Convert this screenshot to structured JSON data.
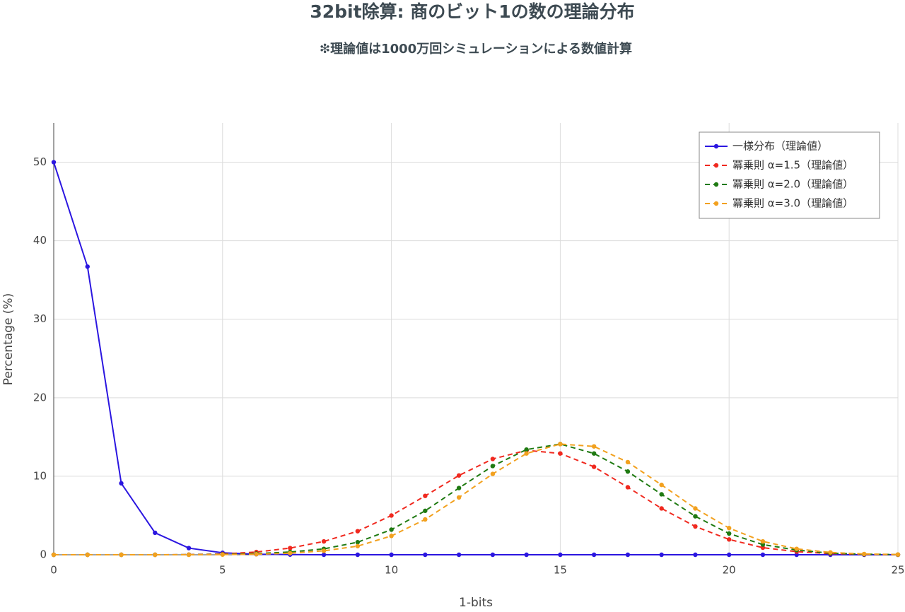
{
  "chart_data": {
    "type": "line",
    "title": "32bit除算: 商のビット1の数の理論分布",
    "subtitle": "❇理論値は1000万回シミュレーションによる数値計算",
    "x_label": "1-bits",
    "y_label": "Percentage (%)",
    "x": [
      0,
      1,
      2,
      3,
      4,
      5,
      6,
      7,
      8,
      9,
      10,
      11,
      12,
      13,
      14,
      15,
      16,
      17,
      18,
      19,
      20,
      21,
      22,
      23,
      24,
      25
    ],
    "xlim": [
      0,
      25
    ],
    "xticks": [
      0,
      5,
      10,
      15,
      20,
      25
    ],
    "ylim": [
      0,
      55
    ],
    "yticks": [
      0,
      10,
      20,
      30,
      40,
      50
    ],
    "grid": true,
    "legend": "upper-right",
    "series": [
      {
        "name": "一様分布（理論値）",
        "color": "#2b16e0",
        "line_style": "solid",
        "values": [
          50,
          36.7,
          9.1,
          2.8,
          0.85,
          0.25,
          0.07,
          0.02,
          0,
          0,
          0,
          0,
          0,
          0,
          0,
          0,
          0,
          0,
          0,
          0,
          0,
          0,
          0,
          0,
          0,
          0
        ]
      },
      {
        "name": "冪乗則 α=1.5（理論値）",
        "color": "#f0291f",
        "line_style": "dash",
        "values": [
          0,
          0,
          0,
          0,
          0.02,
          0.1,
          0.35,
          0.85,
          1.7,
          3.0,
          5.0,
          7.5,
          10.1,
          12.2,
          13.3,
          12.9,
          11.2,
          8.6,
          5.9,
          3.6,
          1.95,
          0.9,
          0.4,
          0.15,
          0.05,
          0.01
        ]
      },
      {
        "name": "冪乗則 α=2.0（理論値）",
        "color": "#1f7a12",
        "line_style": "dash",
        "values": [
          0,
          0,
          0,
          0,
          0.01,
          0.05,
          0.15,
          0.35,
          0.75,
          1.6,
          3.2,
          5.6,
          8.5,
          11.3,
          13.4,
          14.1,
          12.9,
          10.6,
          7.7,
          4.9,
          2.7,
          1.3,
          0.6,
          0.2,
          0.07,
          0.02
        ]
      },
      {
        "name": "冪乗則 α=3.0（理論値）",
        "color": "#f2a11f",
        "line_style": "dash",
        "values": [
          0,
          0,
          0,
          0,
          0,
          0.02,
          0.07,
          0.2,
          0.5,
          1.1,
          2.4,
          4.5,
          7.3,
          10.3,
          12.9,
          14.1,
          13.8,
          11.8,
          8.9,
          5.9,
          3.4,
          1.7,
          0.75,
          0.3,
          0.1,
          0.03
        ]
      }
    ]
  }
}
